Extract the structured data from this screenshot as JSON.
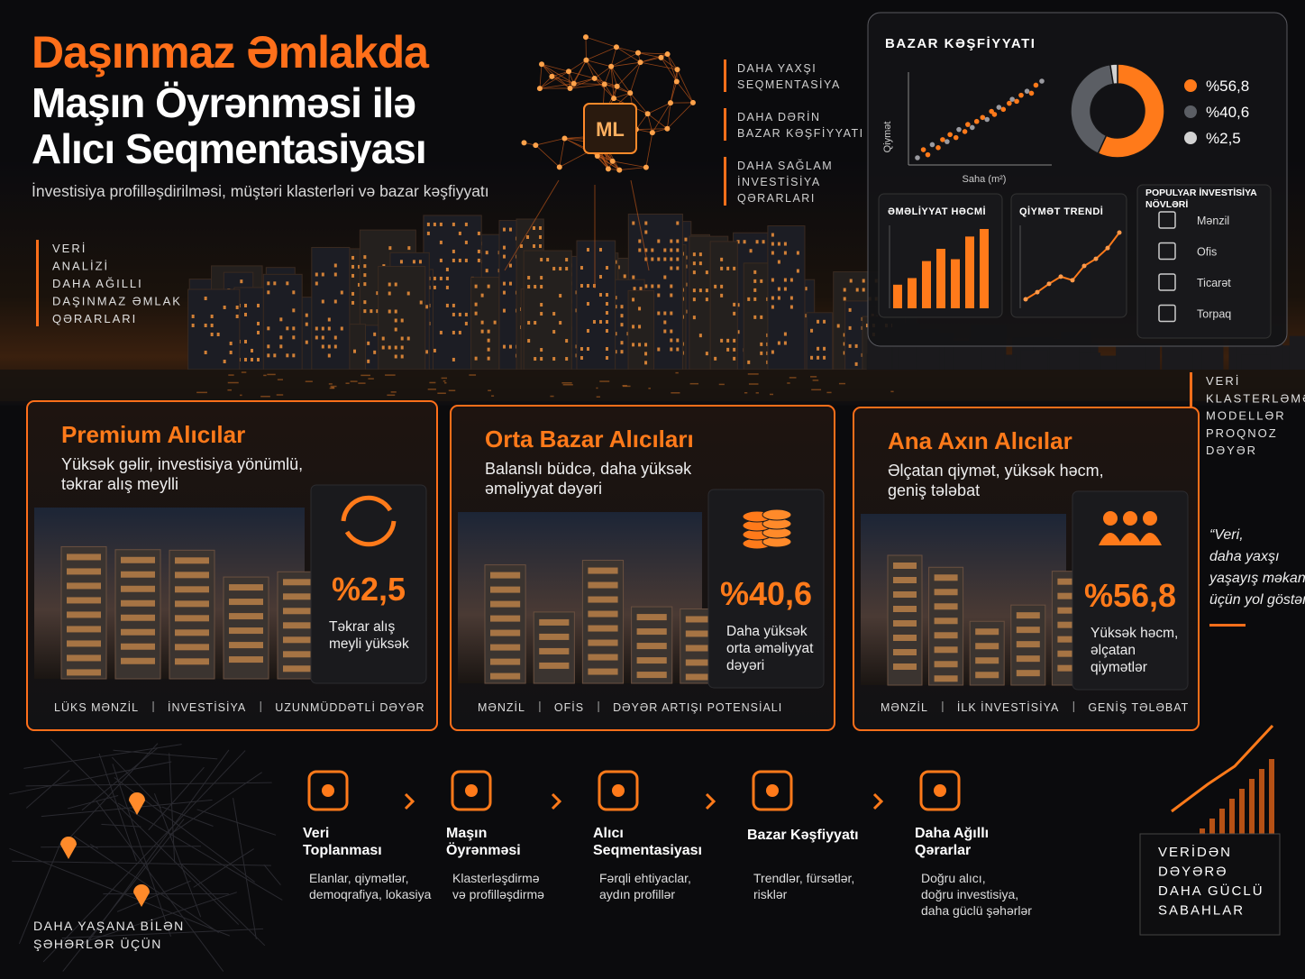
{
  "header": {
    "title_lines": [
      "Daşınmaz Əmlakda",
      "Maşın Öyrənməsi ilə",
      "Alıcı Seqmentasiyası"
    ],
    "subtitle": "İnvestisiya profilləşdirilməsi, müştəri klasterləri və bazar kəşfiyyatı"
  },
  "left_tagline": [
    "VERİ",
    "ANALİZİ",
    "DAHA AĞILLI",
    "DAŞINMAZ ƏMLAK",
    "QƏRARLARI"
  ],
  "ml_badge": "ML",
  "benefits": [
    [
      "DAHA YAXŞI",
      "SEQMENTASİYA"
    ],
    [
      "DAHA DƏRİN",
      "BAZAR KƏŞFİYYATI"
    ],
    [
      "DAHA SAĞLAM",
      "İNVESTİSİYA",
      "QƏRARLARI"
    ]
  ],
  "market_panel": {
    "title": "BAZAR KƏŞFİYYATI",
    "scatter": {
      "y_label": "Qiymət",
      "x_label": "Saha (m²)",
      "x": [
        8,
        12,
        15,
        18,
        22,
        25,
        28,
        30,
        34,
        36,
        40,
        42,
        45,
        48,
        52,
        55,
        58,
        60,
        63,
        66,
        70,
        72,
        75,
        78,
        82,
        85,
        88,
        92
      ],
      "y": [
        12,
        20,
        15,
        25,
        22,
        30,
        28,
        35,
        32,
        40,
        38,
        45,
        42,
        48,
        52,
        50,
        58,
        55,
        62,
        60,
        66,
        70,
        68,
        74,
        78,
        76,
        84,
        88
      ]
    },
    "donut": [
      {
        "value": 56.8,
        "label": "%56,8",
        "color": "#ff7a1a"
      },
      {
        "value": 40.6,
        "label": "%40,6",
        "color": "#5b5e64"
      },
      {
        "value": 2.5,
        "label": "%2,5",
        "color": "#d2d2d2"
      }
    ],
    "volume": {
      "title": "ƏMƏLİYYAT HƏCMİ",
      "values": [
        2.5,
        3.2,
        5,
        6.3,
        5.2,
        7.6,
        8.4
      ]
    },
    "trend": {
      "title": "QİYMƏT TRENDİ",
      "values": [
        3,
        3.6,
        4.3,
        4.9,
        4.6,
        5.8,
        6.4,
        7.3,
        8.6
      ]
    },
    "types": {
      "title_lines": [
        "POPULYAR İNVESTİSİYA",
        "NÖVLƏRİ"
      ],
      "items": [
        "Mənzil",
        "Ofis",
        "Ticarət",
        "Torpaq"
      ]
    }
  },
  "right_tagline": [
    "VERİ",
    "KLASTERLƏMƏ",
    "MODELLƏR",
    "PROQNOZ",
    "DƏYƏR"
  ],
  "segments": [
    {
      "title": "Premium Alıcılar",
      "desc": [
        "Yüksək gəlir, investisiya yönümlü,",
        "təkrar alış meylli"
      ],
      "stat": "%2,5",
      "stat_desc": [
        "Təkrar alış",
        "meyli yüksək"
      ],
      "tags": [
        "LÜKS MƏNZİL",
        "İNVESTİSİYA",
        "UZUNMÜDDƏTLİ DƏYƏR"
      ]
    },
    {
      "title": "Orta Bazar Alıcıları",
      "desc": [
        "Balanslı büdcə, daha yüksək",
        "əməliyyat dəyəri"
      ],
      "stat": "%40,6",
      "stat_desc": [
        "Daha yüksək",
        "orta əməliyyat",
        "dəyəri"
      ],
      "tags": [
        "MƏNZİL",
        "OFİS",
        "DƏYƏR ARTIŞI POTENSİALI"
      ]
    },
    {
      "title": "Ana Axın Alıcılar",
      "desc": [
        "Əlçatan qiymət, yüksək həcm,",
        "geniş tələbat"
      ],
      "stat": "%56,8",
      "stat_desc": [
        "Yüksək həcm,",
        "əlçatan",
        "qiymətlər"
      ],
      "tags": [
        "MƏNZİL",
        "İLK İNVESTİSİYA",
        "GENİŞ TƏLƏBAT"
      ]
    }
  ],
  "quote": [
    "“Veri,",
    "daha yaxşı",
    "yaşayış məkanları",
    "üçün yol göstərir.”"
  ],
  "process": [
    {
      "title": [
        "Veri",
        "Toplanması"
      ],
      "desc": [
        "Elanlar, qiymətlər,",
        "demoqrafiya, lokasiya"
      ]
    },
    {
      "title": [
        "Maşın",
        "Öyrənməsi"
      ],
      "desc": [
        "Klasterləşdirmə",
        "və profilləşdirmə"
      ]
    },
    {
      "title": [
        "Alıcı",
        "Seqmentasiyası"
      ],
      "desc": [
        "Fərqli ehtiyaclar,",
        "aydın profillər"
      ]
    },
    {
      "title": [
        "Bazar Kəşfiyyatı"
      ],
      "desc": [
        "Trendlər, fürsətlər,",
        "risklər"
      ]
    },
    {
      "title": [
        "Daha Ağıllı",
        "Qərarlar"
      ],
      "desc": [
        "Doğru alıcı,",
        "doğru investisiya,",
        "daha güclü şəhərlər"
      ]
    }
  ],
  "footer_left": [
    "DAHA YAŞANA BİLƏN",
    "ŞƏHƏRLƏR ÜÇÜN"
  ],
  "footer_right": [
    "VERİDƏN",
    "DƏYƏRƏ",
    "DAHA GÜCLÜ",
    "SABAHLAR"
  ]
}
